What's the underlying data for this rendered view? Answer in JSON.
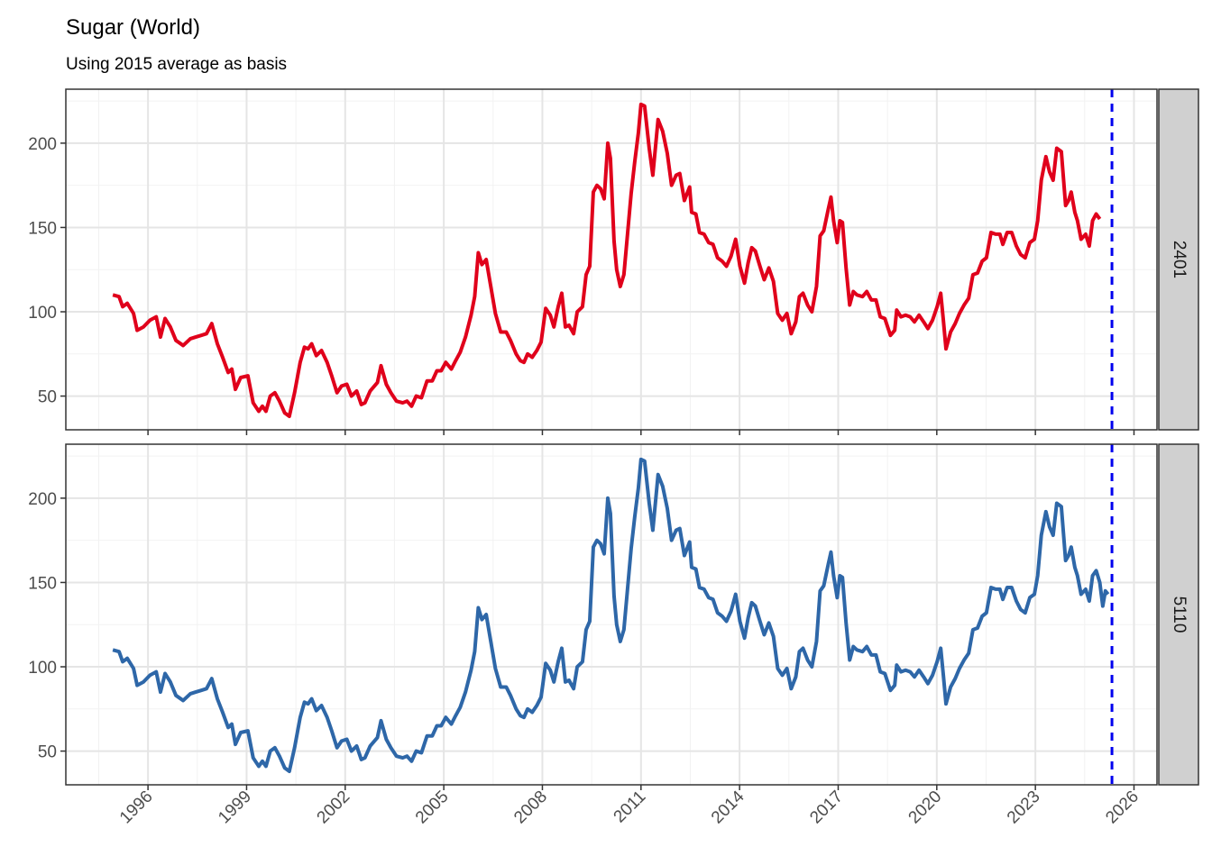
{
  "title": "Sugar (World)",
  "subtitle": "Using 2015 average as basis",
  "chart_data": [
    {
      "type": "line",
      "strip": "2401",
      "color": "#e0001b",
      "vline": 2025.33,
      "vline_color": "#0000ee",
      "grid": true,
      "xlim": [
        1993.5,
        2026.7
      ],
      "xticks": [
        1996,
        1999,
        2002,
        2005,
        2008,
        2011,
        2014,
        2017,
        2020,
        2023,
        2026
      ],
      "ylim": [
        30,
        232
      ],
      "yticks": [
        50,
        100,
        150,
        200
      ],
      "x": [
        1994.93,
        1995.12,
        1995.23,
        1995.37,
        1995.56,
        1995.67,
        1995.86,
        1996.06,
        1996.25,
        1996.38,
        1996.52,
        1996.68,
        1996.85,
        1997.07,
        1997.29,
        1997.45,
        1997.62,
        1997.78,
        1997.94,
        1998.11,
        1998.27,
        1998.44,
        1998.55,
        1998.66,
        1998.82,
        1999.04,
        1999.2,
        1999.37,
        1999.48,
        1999.59,
        1999.72,
        1999.86,
        2000.0,
        2000.16,
        2000.3,
        2000.46,
        2000.63,
        2000.76,
        2000.87,
        2000.98,
        2001.12,
        2001.28,
        2001.45,
        2001.59,
        2001.75,
        2001.89,
        2002.05,
        2002.19,
        2002.35,
        2002.49,
        2002.6,
        2002.76,
        2002.98,
        2003.09,
        2003.25,
        2003.39,
        2003.56,
        2003.75,
        2003.88,
        2004.02,
        2004.16,
        2004.32,
        2004.49,
        2004.65,
        2004.79,
        2004.92,
        2005.06,
        2005.23,
        2005.36,
        2005.5,
        2005.66,
        2005.83,
        2005.94,
        2006.05,
        2006.16,
        2006.29,
        2006.43,
        2006.57,
        2006.73,
        2006.9,
        2007.03,
        2007.2,
        2007.33,
        2007.44,
        2007.55,
        2007.69,
        2007.83,
        2007.96,
        2008.1,
        2008.24,
        2008.35,
        2008.48,
        2008.59,
        2008.7,
        2008.81,
        2008.95,
        2009.06,
        2009.22,
        2009.33,
        2009.44,
        2009.55,
        2009.66,
        2009.77,
        2009.88,
        2009.99,
        2010.07,
        2010.18,
        2010.26,
        2010.37,
        2010.48,
        2010.59,
        2010.7,
        2010.81,
        2010.92,
        2011.0,
        2011.11,
        2011.25,
        2011.36,
        2011.52,
        2011.66,
        2011.8,
        2011.93,
        2012.07,
        2012.18,
        2012.32,
        2012.48,
        2012.54,
        2012.67,
        2012.78,
        2012.92,
        2013.06,
        2013.19,
        2013.33,
        2013.47,
        2013.6,
        2013.74,
        2013.88,
        2014.01,
        2014.15,
        2014.26,
        2014.37,
        2014.48,
        2014.62,
        2014.75,
        2014.89,
        2015.03,
        2015.16,
        2015.3,
        2015.44,
        2015.57,
        2015.71,
        2015.82,
        2015.93,
        2016.07,
        2016.2,
        2016.34,
        2016.45,
        2016.56,
        2016.7,
        2016.78,
        2016.86,
        2016.97,
        2017.05,
        2017.13,
        2017.24,
        2017.35,
        2017.46,
        2017.57,
        2017.74,
        2017.87,
        2018.01,
        2018.15,
        2018.28,
        2018.42,
        2018.59,
        2018.72,
        2018.78,
        2018.91,
        2019.05,
        2019.19,
        2019.32,
        2019.46,
        2019.6,
        2019.73,
        2019.87,
        2020.01,
        2020.12,
        2020.2,
        2020.28,
        2020.42,
        2020.56,
        2020.69,
        2020.83,
        2020.97,
        2021.1,
        2021.24,
        2021.38,
        2021.51,
        2021.65,
        2021.79,
        2021.92,
        2022.01,
        2022.14,
        2022.28,
        2022.42,
        2022.55,
        2022.69,
        2022.83,
        2022.97,
        2023.07,
        2023.18,
        2023.32,
        2023.43,
        2023.54,
        2023.65,
        2023.79,
        2023.92,
        2024.01,
        2024.09,
        2024.2,
        2024.28,
        2024.39,
        2024.53,
        2024.64,
        2024.74,
        2024.85,
        2024.96
      ],
      "values": [
        110,
        109,
        103,
        105,
        99,
        89,
        91,
        95,
        97,
        85,
        96,
        91,
        83,
        80,
        84,
        85,
        86,
        87,
        93,
        81,
        73,
        64,
        66,
        54,
        61,
        62,
        46,
        41,
        44,
        41,
        50,
        52,
        47,
        40,
        38,
        52,
        70,
        79,
        78,
        81,
        74,
        77,
        70,
        62,
        52,
        56,
        57,
        50,
        53,
        45,
        46,
        53,
        58,
        68,
        57,
        52,
        47,
        46,
        47,
        44,
        50,
        49,
        59,
        59,
        65,
        65,
        70,
        66,
        71,
        76,
        85,
        98,
        109,
        135,
        128,
        131,
        115,
        99,
        88,
        88,
        83,
        75,
        71,
        70,
        75,
        73,
        77,
        82,
        102,
        98,
        91,
        103,
        111,
        91,
        92,
        87,
        100,
        103,
        122,
        127,
        171,
        175,
        173,
        167,
        200,
        191,
        142,
        125,
        115,
        122,
        146,
        170,
        189,
        206,
        223,
        222,
        197,
        181,
        214,
        207,
        194,
        175,
        181,
        182,
        166,
        174,
        159,
        158,
        147,
        146,
        141,
        140,
        132,
        130,
        127,
        133,
        143,
        127,
        117,
        129,
        138,
        136,
        127,
        119,
        126,
        118,
        99,
        95,
        99,
        87,
        94,
        109,
        111,
        104,
        100,
        115,
        145,
        148,
        161,
        168,
        154,
        141,
        154,
        153,
        126,
        104,
        112,
        110,
        109,
        112,
        107,
        107,
        97,
        96,
        86,
        89,
        101,
        97,
        98,
        97,
        94,
        98,
        94,
        90,
        95,
        103,
        111,
        95,
        78,
        88,
        93,
        99,
        104,
        108,
        122,
        123,
        130,
        132,
        147,
        146,
        146,
        140,
        147,
        147,
        139,
        134,
        132,
        141,
        143,
        154,
        178,
        192,
        183,
        178,
        197,
        195,
        163,
        166,
        171,
        159,
        154,
        143,
        146,
        139,
        154,
        158,
        155
      ]
    },
    {
      "type": "line",
      "strip": "5110",
      "color": "#2e67a8",
      "vline": 2025.33,
      "vline_color": "#0000ee",
      "grid": true,
      "xlim": [
        1993.5,
        2026.7
      ],
      "xticks": [
        1996,
        1999,
        2002,
        2005,
        2008,
        2011,
        2014,
        2017,
        2020,
        2023,
        2026
      ],
      "ylim": [
        30,
        232
      ],
      "yticks": [
        50,
        100,
        150,
        200
      ],
      "x": [
        1994.93,
        1995.12,
        1995.23,
        1995.37,
        1995.56,
        1995.67,
        1995.86,
        1996.06,
        1996.25,
        1996.38,
        1996.52,
        1996.68,
        1996.85,
        1997.07,
        1997.29,
        1997.45,
        1997.62,
        1997.78,
        1997.94,
        1998.11,
        1998.27,
        1998.44,
        1998.55,
        1998.66,
        1998.82,
        1999.04,
        1999.2,
        1999.37,
        1999.48,
        1999.59,
        1999.72,
        1999.86,
        2000.0,
        2000.16,
        2000.3,
        2000.46,
        2000.63,
        2000.76,
        2000.87,
        2000.98,
        2001.12,
        2001.28,
        2001.45,
        2001.59,
        2001.75,
        2001.89,
        2002.05,
        2002.19,
        2002.35,
        2002.49,
        2002.6,
        2002.76,
        2002.98,
        2003.09,
        2003.25,
        2003.39,
        2003.56,
        2003.75,
        2003.88,
        2004.02,
        2004.16,
        2004.32,
        2004.49,
        2004.65,
        2004.79,
        2004.92,
        2005.06,
        2005.23,
        2005.36,
        2005.5,
        2005.66,
        2005.83,
        2005.94,
        2006.05,
        2006.16,
        2006.29,
        2006.43,
        2006.57,
        2006.73,
        2006.9,
        2007.03,
        2007.2,
        2007.33,
        2007.44,
        2007.55,
        2007.69,
        2007.83,
        2007.96,
        2008.1,
        2008.24,
        2008.35,
        2008.48,
        2008.59,
        2008.7,
        2008.81,
        2008.95,
        2009.06,
        2009.22,
        2009.33,
        2009.44,
        2009.55,
        2009.66,
        2009.77,
        2009.88,
        2009.99,
        2010.07,
        2010.18,
        2010.26,
        2010.37,
        2010.48,
        2010.59,
        2010.7,
        2010.81,
        2010.92,
        2011.0,
        2011.11,
        2011.25,
        2011.36,
        2011.52,
        2011.66,
        2011.8,
        2011.93,
        2012.07,
        2012.18,
        2012.32,
        2012.48,
        2012.54,
        2012.67,
        2012.78,
        2012.92,
        2013.06,
        2013.19,
        2013.33,
        2013.47,
        2013.6,
        2013.74,
        2013.88,
        2014.01,
        2014.15,
        2014.26,
        2014.37,
        2014.48,
        2014.62,
        2014.75,
        2014.89,
        2015.03,
        2015.16,
        2015.3,
        2015.44,
        2015.57,
        2015.71,
        2015.82,
        2015.93,
        2016.07,
        2016.2,
        2016.34,
        2016.45,
        2016.56,
        2016.7,
        2016.78,
        2016.86,
        2016.97,
        2017.05,
        2017.13,
        2017.24,
        2017.35,
        2017.46,
        2017.57,
        2017.74,
        2017.87,
        2018.01,
        2018.15,
        2018.28,
        2018.42,
        2018.59,
        2018.72,
        2018.78,
        2018.91,
        2019.05,
        2019.19,
        2019.32,
        2019.46,
        2019.6,
        2019.73,
        2019.87,
        2020.01,
        2020.12,
        2020.2,
        2020.28,
        2020.42,
        2020.56,
        2020.69,
        2020.83,
        2020.97,
        2021.1,
        2021.24,
        2021.38,
        2021.51,
        2021.65,
        2021.79,
        2021.92,
        2022.01,
        2022.14,
        2022.28,
        2022.42,
        2022.55,
        2022.69,
        2022.83,
        2022.97,
        2023.07,
        2023.18,
        2023.32,
        2023.43,
        2023.54,
        2023.65,
        2023.79,
        2023.92,
        2024.01,
        2024.09,
        2024.2,
        2024.28,
        2024.39,
        2024.53,
        2024.64,
        2024.74,
        2024.85,
        2024.96,
        2025.05,
        2025.13,
        2025.21
      ],
      "values": [
        110,
        109,
        103,
        105,
        99,
        89,
        91,
        95,
        97,
        85,
        96,
        91,
        83,
        80,
        84,
        85,
        86,
        87,
        93,
        81,
        73,
        64,
        66,
        54,
        61,
        62,
        46,
        41,
        44,
        41,
        50,
        52,
        47,
        40,
        38,
        52,
        70,
        79,
        78,
        81,
        74,
        77,
        70,
        62,
        52,
        56,
        57,
        50,
        53,
        45,
        46,
        53,
        58,
        68,
        57,
        52,
        47,
        46,
        47,
        44,
        50,
        49,
        59,
        59,
        65,
        65,
        70,
        66,
        71,
        76,
        85,
        98,
        109,
        135,
        128,
        131,
        115,
        99,
        88,
        88,
        83,
        75,
        71,
        70,
        75,
        73,
        77,
        82,
        102,
        98,
        91,
        103,
        111,
        91,
        92,
        87,
        100,
        103,
        122,
        127,
        171,
        175,
        173,
        167,
        200,
        191,
        142,
        125,
        115,
        122,
        146,
        170,
        189,
        206,
        223,
        222,
        197,
        181,
        214,
        207,
        194,
        175,
        181,
        182,
        166,
        174,
        159,
        158,
        147,
        146,
        141,
        140,
        132,
        130,
        127,
        133,
        143,
        127,
        117,
        129,
        138,
        136,
        127,
        119,
        126,
        118,
        99,
        95,
        99,
        87,
        94,
        109,
        111,
        104,
        100,
        115,
        145,
        148,
        161,
        168,
        154,
        141,
        154,
        153,
        126,
        104,
        112,
        110,
        109,
        112,
        107,
        107,
        97,
        96,
        86,
        89,
        101,
        97,
        98,
        97,
        94,
        98,
        94,
        90,
        95,
        103,
        111,
        95,
        78,
        88,
        93,
        99,
        104,
        108,
        122,
        123,
        130,
        132,
        147,
        146,
        146,
        140,
        147,
        147,
        139,
        134,
        132,
        141,
        143,
        154,
        178,
        192,
        183,
        178,
        197,
        195,
        163,
        166,
        171,
        159,
        154,
        143,
        146,
        139,
        154,
        157,
        150,
        136,
        145,
        143
      ]
    }
  ]
}
